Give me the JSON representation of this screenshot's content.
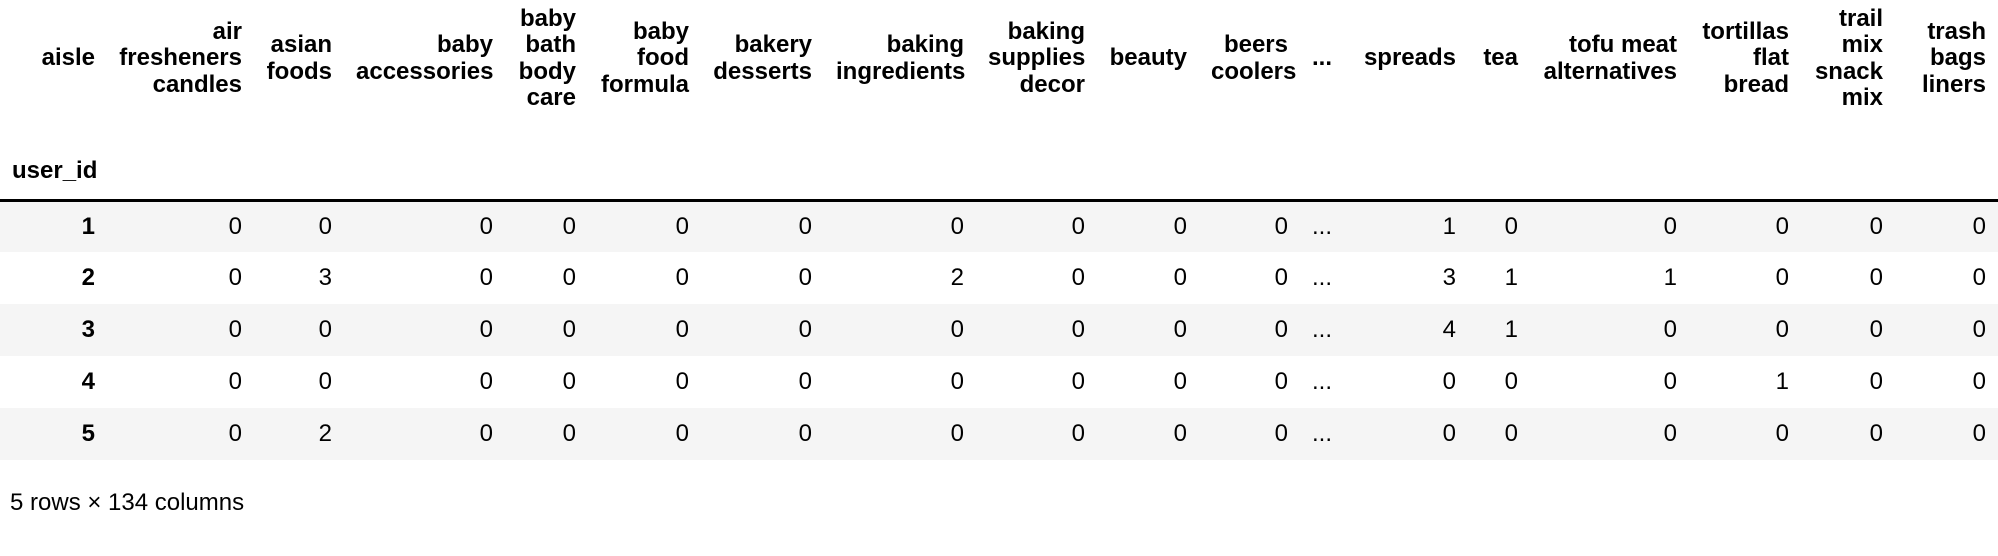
{
  "table": {
    "columns_axis_name": "aisle",
    "index_name": "user_id",
    "columns": [
      "air\nfresheners\ncandles",
      "asian\nfoods",
      "baby\naccessories",
      "baby\nbath\nbody\ncare",
      "baby\nfood\nformula",
      "bakery\ndesserts",
      "baking\ningredients",
      "baking\nsupplies\ndecor",
      "beauty",
      "beers\ncoolers",
      "...",
      "spreads",
      "tea",
      "tofu meat\nalternatives",
      "tortillas\nflat\nbread",
      "trail\nmix\nsnack\nmix",
      "trash\nbags\nliners"
    ],
    "rows": [
      {
        "index": "1",
        "values": [
          "0",
          "0",
          "0",
          "0",
          "0",
          "0",
          "0",
          "0",
          "0",
          "0",
          "...",
          "1",
          "0",
          "0",
          "0",
          "0",
          "0"
        ]
      },
      {
        "index": "2",
        "values": [
          "0",
          "3",
          "0",
          "0",
          "0",
          "0",
          "2",
          "0",
          "0",
          "0",
          "...",
          "3",
          "1",
          "1",
          "0",
          "0",
          "0"
        ]
      },
      {
        "index": "3",
        "values": [
          "0",
          "0",
          "0",
          "0",
          "0",
          "0",
          "0",
          "0",
          "0",
          "0",
          "...",
          "4",
          "1",
          "0",
          "0",
          "0",
          "0"
        ]
      },
      {
        "index": "4",
        "values": [
          "0",
          "0",
          "0",
          "0",
          "0",
          "0",
          "0",
          "0",
          "0",
          "0",
          "...",
          "0",
          "0",
          "0",
          "1",
          "0",
          "0"
        ]
      },
      {
        "index": "5",
        "values": [
          "0",
          "2",
          "0",
          "0",
          "0",
          "0",
          "0",
          "0",
          "0",
          "0",
          "...",
          "0",
          "0",
          "0",
          "0",
          "0",
          "0"
        ]
      }
    ],
    "footer": "5 rows × 134 columns"
  },
  "colors": {
    "background": "#ffffff",
    "text": "#000000",
    "stripe": "#f5f5f5",
    "border": "#000000"
  }
}
